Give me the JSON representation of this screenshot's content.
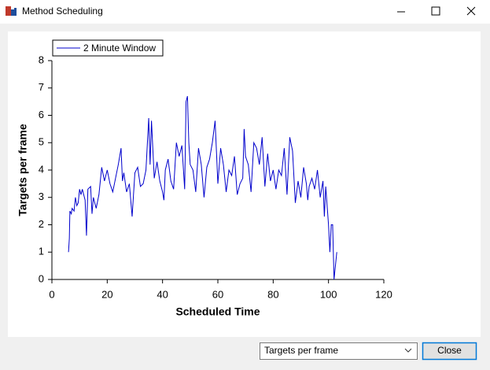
{
  "window": {
    "title": "Method Scheduling"
  },
  "chart_data": {
    "type": "line",
    "x_label": "Scheduled Time",
    "y_label": "Targets per frame",
    "x": [
      6,
      6.3,
      6.5,
      7,
      7.3,
      8,
      8.5,
      9,
      9.5,
      10,
      10.5,
      11,
      12,
      12.5,
      13,
      14,
      14.5,
      15,
      16,
      17,
      18,
      19,
      20,
      21,
      22,
      23,
      24,
      25,
      25.5,
      26,
      27,
      28,
      29,
      30,
      31,
      32,
      33,
      34,
      35,
      35.5,
      36,
      37,
      38,
      39,
      40,
      40.5,
      41,
      42,
      43,
      44,
      45,
      46,
      47,
      48,
      48.5,
      49,
      49.5,
      50,
      51,
      52,
      53,
      54,
      55,
      56,
      57,
      58,
      59,
      60,
      61,
      62,
      63,
      64,
      65,
      66,
      67,
      68,
      69,
      69.5,
      70,
      71,
      72,
      73,
      74,
      75,
      76,
      77,
      78,
      79,
      80,
      81,
      82,
      83,
      84,
      85,
      86,
      87,
      88,
      89,
      90,
      91,
      92,
      92.5,
      93,
      94,
      95,
      96,
      97,
      98,
      98.5,
      99,
      100,
      100.5,
      101,
      101.5,
      102,
      102.5,
      103
    ],
    "series": [
      {
        "name": "2 Minute Window",
        "color": "#0000cc",
        "values": [
          1,
          1.5,
          2.5,
          2.4,
          2.6,
          2.5,
          3,
          2.7,
          2.8,
          3.3,
          3.1,
          3.3,
          2.9,
          1.6,
          3.3,
          3.4,
          2.4,
          3,
          2.6,
          3.1,
          4.1,
          3.6,
          4,
          3.5,
          3.2,
          3.7,
          4.2,
          4.8,
          3.6,
          3.9,
          3.2,
          3.5,
          2.3,
          3.9,
          4.1,
          3.4,
          3.5,
          4,
          5.9,
          4.2,
          5.8,
          3.7,
          4.3,
          3.6,
          3.2,
          2.9,
          4,
          4.4,
          3.6,
          3.3,
          5,
          4.5,
          4.9,
          3.3,
          6.5,
          6.7,
          5,
          4.2,
          4,
          3.2,
          4.8,
          4.2,
          3,
          4.1,
          4.4,
          5,
          5.8,
          3.5,
          4.8,
          4.2,
          3.2,
          4,
          3.8,
          4.5,
          3.1,
          3.5,
          3.7,
          5.5,
          4.5,
          4.2,
          3.2,
          5,
          4.8,
          4.2,
          5.2,
          3.4,
          4.6,
          3.6,
          4,
          3.3,
          4,
          3.8,
          4.8,
          3.1,
          5.2,
          4.7,
          2.8,
          3.6,
          3,
          4.1,
          3.5,
          2.9,
          3.4,
          3.7,
          3.3,
          4,
          3,
          3.6,
          2.3,
          3.4,
          2,
          1,
          2,
          2,
          0,
          0.5,
          1
        ]
      }
    ],
    "xlim": [
      0,
      120
    ],
    "xticks": [
      0,
      20,
      40,
      60,
      80,
      100,
      120
    ],
    "ylim": [
      0,
      8
    ],
    "yticks": [
      0,
      1,
      2,
      3,
      4,
      5,
      6,
      7,
      8
    ],
    "grid": false,
    "legend": "top-left"
  },
  "controls": {
    "dropdown": "Targets per frame",
    "button": "Close"
  }
}
